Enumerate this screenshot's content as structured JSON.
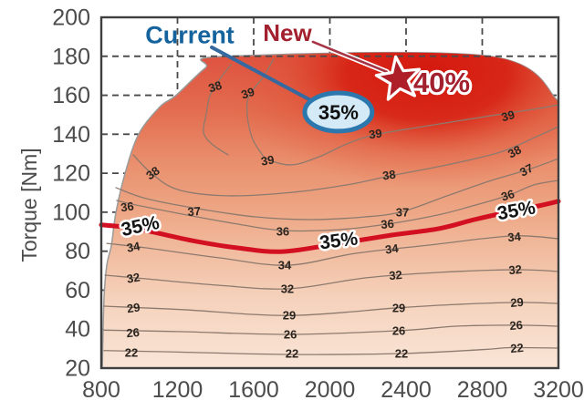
{
  "colors": {
    "background": "#ffffff",
    "axis_text": "#4c4c4c",
    "plot_border": "#3f3f3f",
    "grid": "#4a4a4a",
    "contour_line": "#8d7a6e",
    "contour_text": "#2b241e",
    "envelope_edge": "#9a9a9a",
    "red_contour": "#d21022",
    "red_label_text": "#141414",
    "halo": "#ffffff",
    "current_text": "#15639d",
    "current_leader": "#35699f",
    "new_text": "#a3202f",
    "new_leader": "#a63545",
    "star_fill": "#ae1e29",
    "pct40_text": "#a3202f",
    "ellipse_fill": "#d4eaf6",
    "ellipse_stroke": "#2b77ae",
    "ellipse_text": "#101010",
    "fill_top": "#de5340",
    "fill_bottom": "#f9e5d7",
    "hotspot": "#d4160c"
  },
  "chart_data": {
    "type": "contour",
    "ylabel": "Torque [Nm]",
    "x_ticks": [
      800,
      1200,
      1600,
      2000,
      2400,
      2800,
      3200
    ],
    "y_ticks": [
      20,
      40,
      60,
      80,
      100,
      120,
      140,
      160,
      180,
      200
    ],
    "xlim": [
      800,
      3200
    ],
    "ylim": [
      20,
      200
    ],
    "grid": "dashed",
    "contour_levels": [
      22,
      26,
      29,
      32,
      34,
      35,
      36,
      37,
      38,
      39
    ],
    "envelope": [
      [
        805,
        20
      ],
      [
        814,
        55
      ],
      [
        829,
        73
      ],
      [
        853,
        83
      ],
      [
        877,
        100
      ],
      [
        925,
        120
      ],
      [
        996,
        140
      ],
      [
        1107,
        154
      ],
      [
        1193,
        160
      ],
      [
        1346,
        174
      ],
      [
        1456,
        180
      ],
      [
        2841,
        180
      ],
      [
        3200,
        157
      ],
      [
        3200,
        20
      ]
    ],
    "contours": [
      {
        "level": "22",
        "points": [
          [
            814,
            29
          ],
          [
            1226,
            28.2
          ],
          [
            1787,
            27
          ],
          [
            2376,
            27.5
          ],
          [
            2800,
            29.5
          ],
          [
            2951,
            30.5
          ],
          [
            3200,
            30.3
          ]
        ]
      },
      {
        "level": "26",
        "points": [
          [
            814,
            39.5
          ],
          [
            1226,
            38.7
          ],
          [
            1787,
            37.3
          ],
          [
            2362,
            39.2
          ],
          [
            2664,
            41.5
          ],
          [
            2975,
            42
          ],
          [
            3200,
            41.5
          ]
        ]
      },
      {
        "level": "29",
        "points": [
          [
            814,
            51.8
          ],
          [
            1226,
            50
          ],
          [
            1787,
            47
          ],
          [
            2362,
            51
          ],
          [
            2664,
            52.7
          ],
          [
            2985,
            53.7
          ],
          [
            3200,
            53.2
          ]
        ]
      },
      {
        "level": "32",
        "points": [
          [
            819,
            67.7
          ],
          [
            1035,
            65.8
          ],
          [
            1418,
            62.5
          ],
          [
            1787,
            60.7
          ],
          [
            2185,
            66.3
          ],
          [
            2568,
            69.1
          ],
          [
            2975,
            70.5
          ],
          [
            3200,
            69.6
          ]
        ]
      },
      {
        "level": "34",
        "points": [
          [
            829,
            84
          ],
          [
            1035,
            81.7
          ],
          [
            1418,
            76.6
          ],
          [
            1777,
            72.8
          ],
          [
            2137,
            78.9
          ],
          [
            2520,
            83.1
          ],
          [
            2951,
            87.8
          ],
          [
            3200,
            86.4
          ]
        ]
      },
      {
        "level": "36",
        "points": [
          [
            881,
            106
          ],
          [
            982,
            103.7
          ],
          [
            1226,
            99
          ],
          [
            1514,
            93.9
          ],
          [
            1753,
            90.6
          ],
          [
            2041,
            91
          ],
          [
            2304,
            93.9
          ],
          [
            2568,
            98.6
          ],
          [
            2759,
            103.5
          ],
          [
            2941,
            108.8
          ],
          [
            3071,
            114
          ],
          [
            3200,
            116.3
          ]
        ]
      },
      {
        "level": "37",
        "points": [
          [
            877,
            112.6
          ],
          [
            1035,
            107
          ],
          [
            1308,
            101.8
          ],
          [
            1610,
            97.6
          ],
          [
            1897,
            96.2
          ],
          [
            2185,
            97.6
          ],
          [
            2381,
            100.3
          ],
          [
            2616,
            108.4
          ],
          [
            2832,
            115.8
          ],
          [
            3042,
            121.9
          ],
          [
            3200,
            127.5
          ]
        ]
      },
      {
        "level": "38",
        "points": [
          [
            968,
            129.4
          ],
          [
            1063,
            120
          ],
          [
            1202,
            111.6
          ],
          [
            1466,
            108.4
          ],
          [
            1801,
            110.2
          ],
          [
            2089,
            114
          ],
          [
            2314,
            118.6
          ],
          [
            2616,
            124.3
          ],
          [
            2894,
            130.8
          ],
          [
            3086,
            138.8
          ],
          [
            3200,
            143.9
          ]
        ]
      },
      {
        "level": "38",
        "points": [
          [
            1480,
            175.7
          ],
          [
            1418,
            167.7
          ],
          [
            1370,
            159.8
          ],
          [
            1351,
            150.4
          ],
          [
            1337,
            141.1
          ],
          [
            1380,
            135
          ],
          [
            1466,
            129.4
          ]
        ]
      },
      {
        "level": "39",
        "points": [
          [
            1705,
            178.5
          ],
          [
            1648,
            169.1
          ],
          [
            1576,
            159.8
          ],
          [
            1566,
            150.4
          ],
          [
            1590,
            138.7
          ],
          [
            1633,
            131.2
          ],
          [
            1677,
            127
          ],
          [
            1801,
            124.3
          ],
          [
            1945,
            128.5
          ],
          [
            2089,
            135
          ],
          [
            2237,
            139.7
          ],
          [
            2520,
            144.4
          ],
          [
            2879,
            150
          ],
          [
            3095,
            153.2
          ],
          [
            3200,
            155.1
          ]
        ]
      },
      {
        "level": "35",
        "style": "bold-red",
        "points": [
          [
            800,
            93.5
          ],
          [
            987,
            91.5
          ],
          [
            1274,
            85.5
          ],
          [
            1514,
            81.7
          ],
          [
            1753,
            79.8
          ],
          [
            2050,
            84
          ],
          [
            2328,
            88.3
          ],
          [
            2568,
            91.5
          ],
          [
            2759,
            96.2
          ],
          [
            2951,
            100.4
          ],
          [
            3095,
            103.2
          ],
          [
            3200,
            105.6
          ]
        ]
      }
    ],
    "contour_labels": [
      {
        "text": "22",
        "rpm": 958,
        "nm": 28,
        "rot": 0
      },
      {
        "text": "22",
        "rpm": 1801,
        "nm": 27.5,
        "rot": 0
      },
      {
        "text": "22",
        "rpm": 2376,
        "nm": 27.5,
        "rot": 0
      },
      {
        "text": "22",
        "rpm": 2984,
        "nm": 30.3,
        "rot": -5
      },
      {
        "text": "26",
        "rpm": 968,
        "nm": 38.2,
        "rot": -5
      },
      {
        "text": "26",
        "rpm": 1792,
        "nm": 37.3,
        "rot": 0
      },
      {
        "text": "26",
        "rpm": 2362,
        "nm": 39.2,
        "rot": 0
      },
      {
        "text": "26",
        "rpm": 2980,
        "nm": 42,
        "rot": -5
      },
      {
        "text": "29",
        "rpm": 972,
        "nm": 50.9,
        "rot": -8
      },
      {
        "text": "29",
        "rpm": 1787,
        "nm": 47.1,
        "rot": 0
      },
      {
        "text": "29",
        "rpm": 2362,
        "nm": 50.9,
        "rot": 0
      },
      {
        "text": "29",
        "rpm": 2984,
        "nm": 53.7,
        "rot": -5
      },
      {
        "text": "32",
        "rpm": 972,
        "nm": 66.3,
        "rot": -10
      },
      {
        "text": "32",
        "rpm": 1777,
        "nm": 60.7,
        "rot": 0
      },
      {
        "text": "32",
        "rpm": 2347,
        "nm": 67.7,
        "rot": -5
      },
      {
        "text": "32",
        "rpm": 2975,
        "nm": 70.5,
        "rot": -5
      },
      {
        "text": "34",
        "rpm": 972,
        "nm": 82.2,
        "rot": -10
      },
      {
        "text": "34",
        "rpm": 1763,
        "nm": 72.8,
        "rot": 0
      },
      {
        "text": "34",
        "rpm": 2328,
        "nm": 81.2,
        "rot": -8
      },
      {
        "text": "34",
        "rpm": 2970,
        "nm": 87.3,
        "rot": -5
      },
      {
        "text": "36",
        "rpm": 939,
        "nm": 102.8,
        "rot": -8
      },
      {
        "text": "36",
        "rpm": 1753,
        "nm": 90.1,
        "rot": 0
      },
      {
        "text": "36",
        "rpm": 2304,
        "nm": 93.9,
        "rot": -5
      },
      {
        "text": "36",
        "rpm": 2941,
        "nm": 108.8,
        "rot": -18
      },
      {
        "text": "37",
        "rpm": 1289,
        "nm": 100.4,
        "rot": -5
      },
      {
        "text": "37",
        "rpm": 2381,
        "nm": 99.9,
        "rot": 0
      },
      {
        "text": "37",
        "rpm": 3042,
        "nm": 121.9,
        "rot": -28
      },
      {
        "text": "38",
        "rpm": 1083,
        "nm": 120.5,
        "rot": -35
      },
      {
        "text": "38",
        "rpm": 1404,
        "nm": 164.5,
        "rot": -18
      },
      {
        "text": "38",
        "rpm": 2314,
        "nm": 119.1,
        "rot": -8
      },
      {
        "text": "38",
        "rpm": 2980,
        "nm": 131.3,
        "rot": -28
      },
      {
        "text": "39",
        "rpm": 1576,
        "nm": 161.2,
        "rot": -18
      },
      {
        "text": "39",
        "rpm": 1677,
        "nm": 126.6,
        "rot": -10
      },
      {
        "text": "39",
        "rpm": 2242,
        "nm": 140.2,
        "rot": -8
      },
      {
        "text": "39",
        "rpm": 2941,
        "nm": 149.5,
        "rot": -15
      }
    ],
    "red_line_labels": [
      {
        "text": "35%",
        "rpm": 1011,
        "nm": 93,
        "rot": -12
      },
      {
        "text": "35%",
        "rpm": 2050,
        "nm": 85.5,
        "rot": -7
      },
      {
        "text": "35%",
        "rpm": 2984,
        "nm": 101,
        "rot": -10
      }
    ],
    "annotations": {
      "current": {
        "label": "Current",
        "label_rpm": 1265,
        "label_nm": 191,
        "leader": [
          [
            1380,
            184.6
          ],
          [
            1954,
            154.6
          ]
        ],
        "ellipse": {
          "text": "35%",
          "rpm": 2045,
          "nm": 151.4,
          "rx_rpm": 177,
          "ry_nm": 9.8
        }
      },
      "new": {
        "label": "New",
        "label_rpm": 1777,
        "label_nm": 192,
        "leader": [
          [
            1911,
            187.4
          ],
          [
            2299,
            172
          ]
        ],
        "star": {
          "rpm": 2362,
          "nm": 168.2
        },
        "value": {
          "text": "40%",
          "rpm": 2587,
          "nm": 166.8
        }
      }
    }
  }
}
